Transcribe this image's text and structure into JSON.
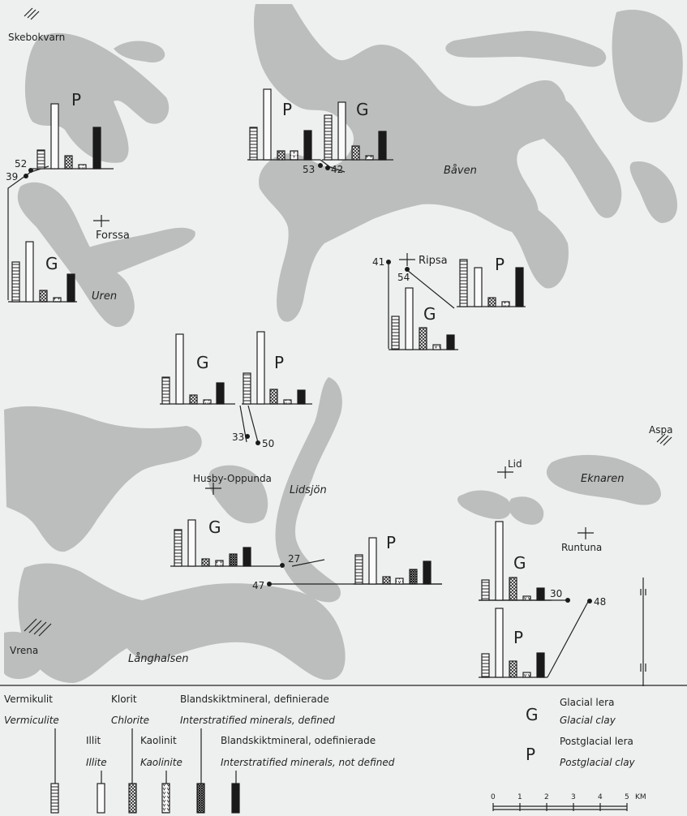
{
  "places": {
    "skebokvarn": "Skebokvarn",
    "forssa": "Forssa",
    "uren": "Uren",
    "baven": "Båven",
    "ripsa": "Ripsa",
    "aspa": "Aspa",
    "husby": "Husby-Oppunda",
    "lidsjon": "Lidsjön",
    "lid": "Lid",
    "eknaren": "Eknaren",
    "runtuna": "Runtuna",
    "vrena": "Vrena",
    "langhalsen": "Långhalsen"
  },
  "samples": {
    "s52": "52",
    "s39": "39",
    "s53": "53",
    "s42": "42",
    "s41": "41",
    "s54": "54",
    "s33": "33",
    "s50": "50",
    "s27": "27",
    "s47": "47",
    "s30": "30",
    "s48": "48"
  },
  "clay_letters": {
    "G": "G",
    "P": "P"
  },
  "legend": {
    "verm_sv": "Vermikulit",
    "verm_en": "Vermiculite",
    "klor_sv": "Klorit",
    "klor_en": "Chlorite",
    "illit_sv": "Illit",
    "illit_en": "Illite",
    "kaol_sv": "Kaolinit",
    "kaol_en": "Kaolinite",
    "def_sv": "Blandskiktmineral, definierade",
    "def_en": "Interstratified minerals, defined",
    "undef_sv": "Blandskiktmineral, odefinierade",
    "undef_en": "Interstratified minerals, not defined",
    "g_sv": "Glacial lera",
    "g_en": "Glacial clay",
    "p_sv": "Postglacial lera",
    "p_en": "Postglacial clay"
  },
  "scale": {
    "ticks": [
      "0",
      "1",
      "2",
      "3",
      "4",
      "5"
    ],
    "unit": "KM"
  },
  "colors": {
    "water": "#bcbdbd",
    "land": "#eef0ef",
    "ink": "#222222"
  }
}
